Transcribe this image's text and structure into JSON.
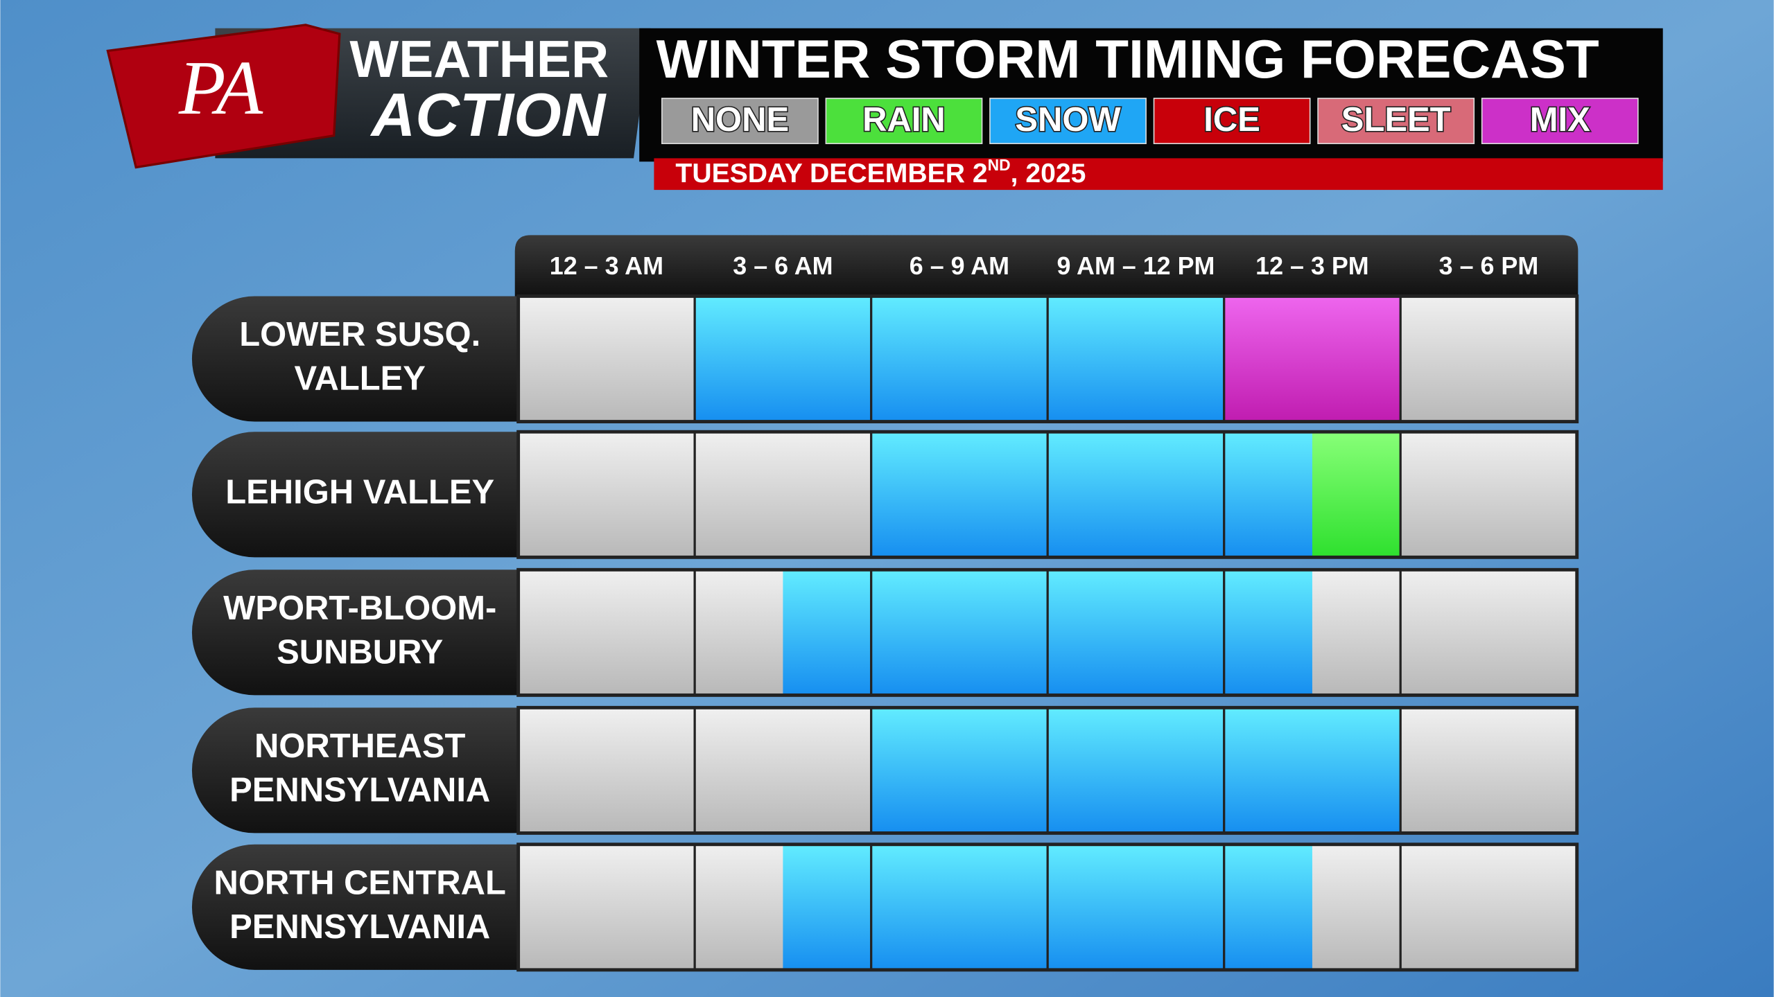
{
  "logo": {
    "initials": "PA",
    "line1": "WEATHER",
    "line2": "ACTION"
  },
  "header": {
    "title": "WINTER STORM TIMING FORECAST",
    "date": {
      "main": "TUESDAY DECEMBER 2",
      "suffix": "ND",
      "tail": ", 2025"
    }
  },
  "legend": [
    {
      "label": "NONE",
      "color": "#9a9a9a"
    },
    {
      "label": "RAIN",
      "color": "#4ce03c"
    },
    {
      "label": "SNOW",
      "color": "#1fa6f5"
    },
    {
      "label": "ICE",
      "color": "#c8000a"
    },
    {
      "label": "SLEET",
      "color": "#d86a78"
    },
    {
      "label": "MIX",
      "color": "#cc30c8"
    }
  ],
  "columns": [
    "12 – 3 AM",
    "3 – 6 AM",
    "6 – 9 AM",
    "9 AM – 12 PM",
    "12 – 3 PM",
    "3 – 6 PM"
  ],
  "rows": [
    {
      "label": [
        "LOWER SUSQ.",
        "VALLEY"
      ],
      "slots": [
        "NONE",
        "NONE",
        "SNOW",
        "SNOW",
        "SNOW",
        "SNOW",
        "SNOW",
        "SNOW",
        "MIX",
        "MIX",
        "NONE",
        "NONE"
      ]
    },
    {
      "label": [
        "LEHIGH VALLEY"
      ],
      "slots": [
        "NONE",
        "NONE",
        "NONE",
        "NONE",
        "SNOW",
        "SNOW",
        "SNOW",
        "SNOW",
        "SNOW",
        "RAIN",
        "NONE",
        "NONE"
      ]
    },
    {
      "label": [
        "WPORT-BLOOM-",
        "SUNBURY"
      ],
      "slots": [
        "NONE",
        "NONE",
        "NONE",
        "SNOW",
        "SNOW",
        "SNOW",
        "SNOW",
        "SNOW",
        "SNOW",
        "NONE",
        "NONE",
        "NONE"
      ]
    },
    {
      "label": [
        "NORTHEAST",
        "PENNSYLVANIA"
      ],
      "slots": [
        "NONE",
        "NONE",
        "NONE",
        "NONE",
        "SNOW",
        "SNOW",
        "SNOW",
        "SNOW",
        "SNOW",
        "SNOW",
        "NONE",
        "NONE"
      ]
    },
    {
      "label": [
        "NORTH CENTRAL",
        "PENNSYLVANIA"
      ],
      "slots": [
        "NONE",
        "NONE",
        "NONE",
        "SNOW",
        "SNOW",
        "SNOW",
        "SNOW",
        "SNOW",
        "SNOW",
        "NONE",
        "NONE",
        "NONE"
      ]
    }
  ]
}
